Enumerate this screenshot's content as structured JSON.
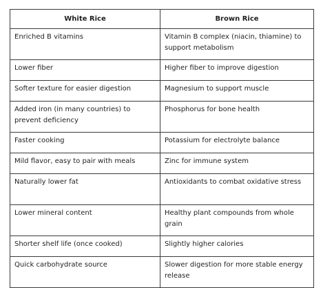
{
  "table": {
    "headers": [
      "White Rice",
      "Brown Rice"
    ],
    "rows": [
      [
        "Enriched B vitamins",
        "Vitamin B complex (niacin, thiamine) to support metabolism"
      ],
      [
        "Lower fiber",
        "Higher fiber to improve digestion"
      ],
      [
        "Softer texture for easier digestion",
        "Magnesium to support muscle"
      ],
      [
        "Added iron (in many countries) to prevent deficiency",
        "Phosphorus for bone health"
      ],
      [
        "Faster cooking",
        "Potassium for electrolyte balance"
      ],
      [
        "Mild flavor, easy to pair with meals",
        "Zinc for immune system"
      ],
      [
        "Naturally lower fat",
        "Antioxidants to combat oxidative stress"
      ],
      [
        "Lower mineral content",
        "Healthy plant compounds from whole grain"
      ],
      [
        "Shorter shelf life (once cooked)",
        "Slightly higher calories"
      ],
      [
        "Quick carbohydrate source",
        "Slower digestion for more stable energy release"
      ]
    ]
  }
}
